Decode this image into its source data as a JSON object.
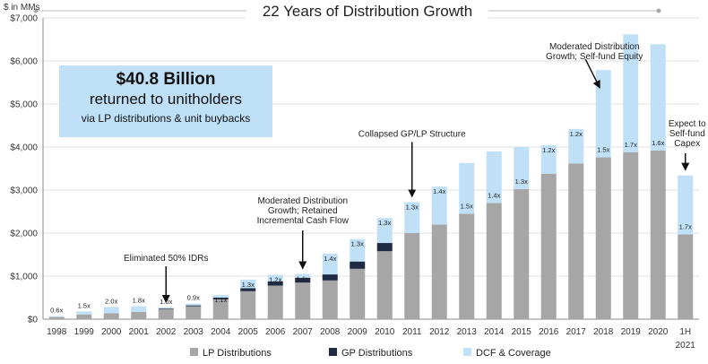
{
  "chart_data": {
    "type": "bar",
    "stacked": true,
    "title": "22 Years of Distribution Growth",
    "unit_label": "$ in MMs",
    "categories": [
      "1998",
      "1999",
      "2000",
      "2001",
      "2002",
      "2003",
      "2004",
      "2005",
      "2006",
      "2007",
      "2008",
      "2009",
      "2010",
      "2011",
      "2012",
      "2013",
      "2014",
      "2015",
      "2016",
      "2017",
      "2018",
      "2019",
      "2020",
      "1H 2021"
    ],
    "series": [
      {
        "name": "LP Distributions",
        "color": "#a6a6a6",
        "values": [
          50,
          110,
          140,
          170,
          240,
          300,
          460,
          650,
          780,
          850,
          900,
          1170,
          1580,
          2000,
          2200,
          2450,
          2700,
          3020,
          3380,
          3620,
          3760,
          3880,
          3920,
          1970
        ]
      },
      {
        "name": "GP Distributions",
        "color": "#1f2a44",
        "values": [
          0,
          0,
          0,
          0,
          10,
          20,
          40,
          70,
          100,
          110,
          140,
          170,
          190,
          0,
          0,
          0,
          0,
          0,
          0,
          0,
          0,
          0,
          0,
          0
        ]
      },
      {
        "name": "DCF & Coverage",
        "color": "#bfe0f7",
        "values": [
          20,
          70,
          140,
          130,
          20,
          40,
          60,
          200,
          150,
          90,
          480,
          520,
          580,
          720,
          880,
          1180,
          1200,
          980,
          660,
          800,
          2030,
          2740,
          2470,
          1370
        ]
      }
    ],
    "coverage_labels": [
      "0.6x",
      "1.5x",
      "2.0x",
      "1.8x",
      "1.0x",
      "0.9x",
      "1.1x",
      "1.3x",
      "1.2x",
      "1.1x",
      "1.4x",
      "1.3x",
      "1.3x",
      "1.3x",
      "1.4x",
      "1.5x",
      "1.4x",
      "1.3x",
      "1.2x",
      "1.2x",
      "1.5x",
      "1.7x",
      "1.6x",
      "1.7x"
    ],
    "yaxis": {
      "min": 0,
      "max": 7000,
      "step": 1000,
      "tick_labels": [
        "$0",
        "$1,000",
        "$2,000",
        "$3,000",
        "$4,000",
        "$5,000",
        "$6,000",
        "$7,000"
      ]
    },
    "grid": true,
    "legend_position": "bottom",
    "callout": {
      "amount": "$40.8 Billion",
      "line2": "returned to unitholders",
      "line3": "via LP distributions & unit buybacks"
    },
    "annotations": [
      {
        "category": "2002",
        "lines": [
          "Eliminated 50% IDRs"
        ]
      },
      {
        "category": "2007",
        "lines": [
          "Moderated Distribution",
          "Growth; Retained",
          "Incremental Cash Flow"
        ]
      },
      {
        "category": "2011",
        "lines": [
          "Collapsed GP/LP Structure"
        ]
      },
      {
        "category": "2018",
        "lines": [
          "Moderated Distribution",
          "Growth; Self-fund Equity"
        ]
      },
      {
        "category": "1H 2021",
        "lines": [
          "Expect to",
          "Self-fund",
          "Capex"
        ]
      }
    ]
  }
}
